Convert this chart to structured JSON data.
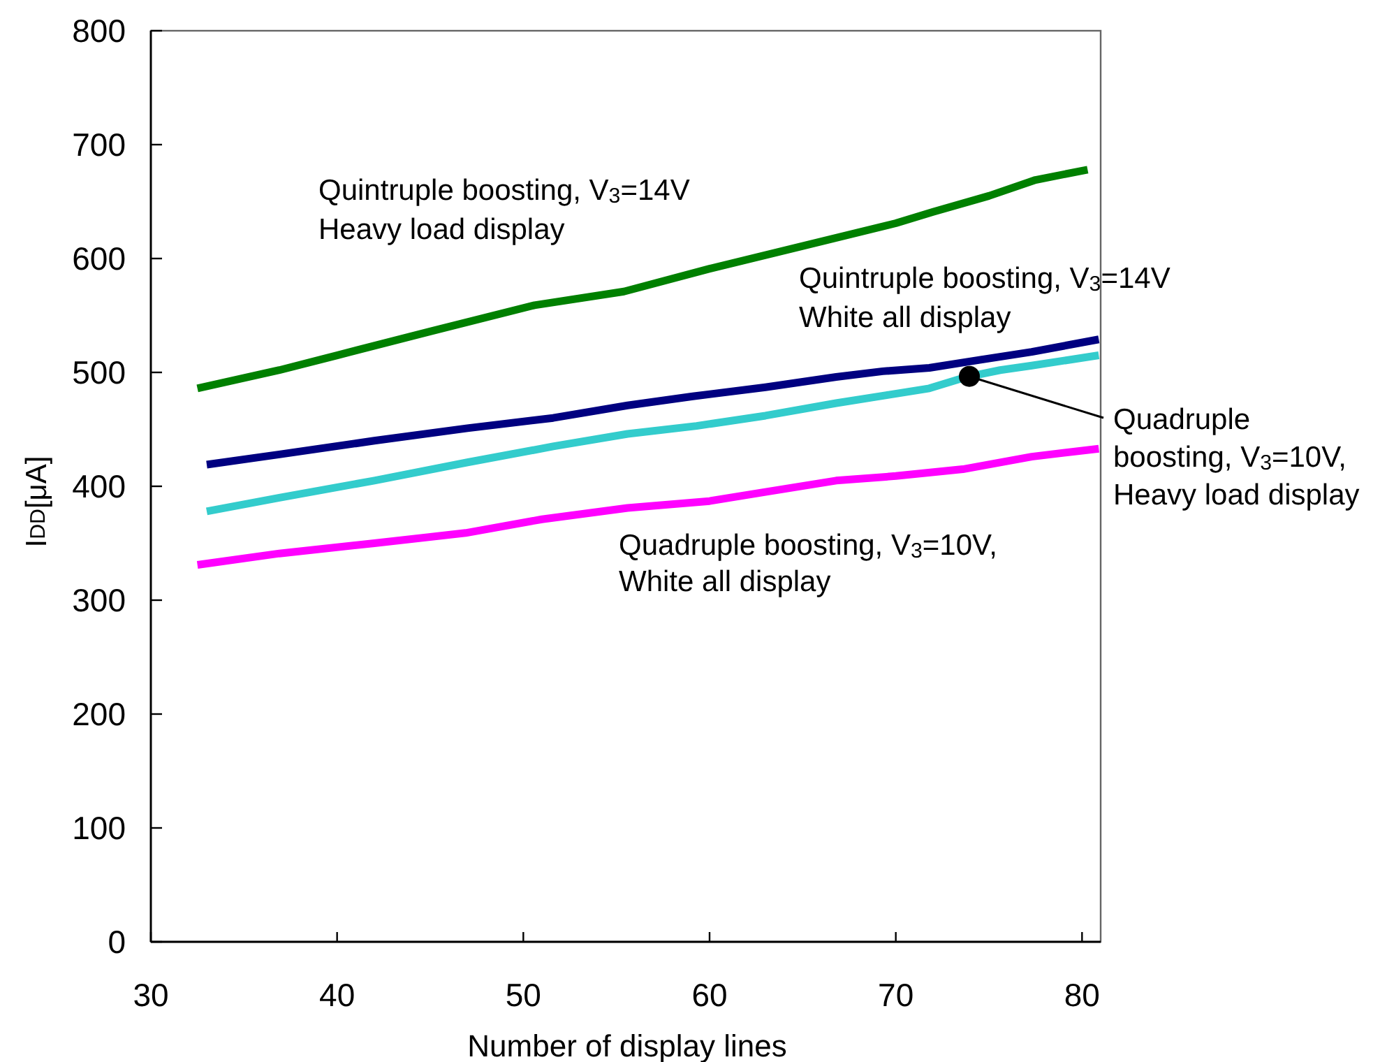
{
  "chart_data": {
    "type": "line",
    "xlabel": "Number of display lines",
    "ylabel": "I$_{DD}$[μA]",
    "xlim": [
      30,
      81
    ],
    "ylim": [
      0,
      800
    ],
    "xticks": [
      30,
      40,
      50,
      60,
      70,
      80
    ],
    "yticks": [
      0,
      100,
      200,
      300,
      400,
      500,
      600,
      700,
      800
    ],
    "grid": false,
    "legend": false,
    "line_style": "solid",
    "marker": "none",
    "series": [
      {
        "name": "Quintruple boosting, V$_{3}$=14V\nHeavy load display",
        "color": "#008000",
        "x": [
          32.5,
          36.9,
          40,
          45,
          50.6,
          55.4,
          60,
          65,
          70,
          72,
          75,
          77.5,
          80.3
        ],
        "values": [
          486,
          502,
          515,
          536,
          559,
          571,
          591,
          611,
          631,
          641,
          655,
          669,
          678
        ]
      },
      {
        "name": "Quintruple boosting, V$_{3}$=14V\nWhite all display",
        "color": "#000080",
        "x": [
          33,
          36.9,
          42,
          47,
          51.6,
          55.6,
          59.1,
          63,
          66.8,
          69.3,
          71.8,
          74.5,
          77.3,
          80.9
        ],
        "values": [
          419,
          428,
          440,
          451,
          460,
          471,
          479,
          487,
          496,
          501,
          504,
          511,
          518,
          529
        ]
      },
      {
        "name": "Quadruple\nboosting, V$_{3}$=10V,\nHeavy load display",
        "color": "#33cccc",
        "x": [
          33,
          36.9,
          42,
          47,
          51.6,
          55.6,
          59.3,
          63,
          66.8,
          69.5,
          71.8,
          73.8,
          75.6,
          77.3,
          80.9
        ],
        "values": [
          378,
          390,
          405,
          421,
          435,
          446,
          453,
          462,
          473,
          480,
          486,
          496,
          502,
          506,
          515
        ]
      },
      {
        "name": "Quadruple boosting, V$_{3}$=10V,\nWhite all display",
        "color": "#ff00ff",
        "x": [
          32.5,
          36.9,
          42,
          46.9,
          51,
          55.6,
          60,
          63,
          66.8,
          70,
          73.6,
          77.3,
          80.9
        ],
        "values": [
          331,
          341,
          350,
          359,
          371,
          381,
          387,
          395,
          405,
          409,
          415,
          426,
          433
        ]
      }
    ]
  }
}
